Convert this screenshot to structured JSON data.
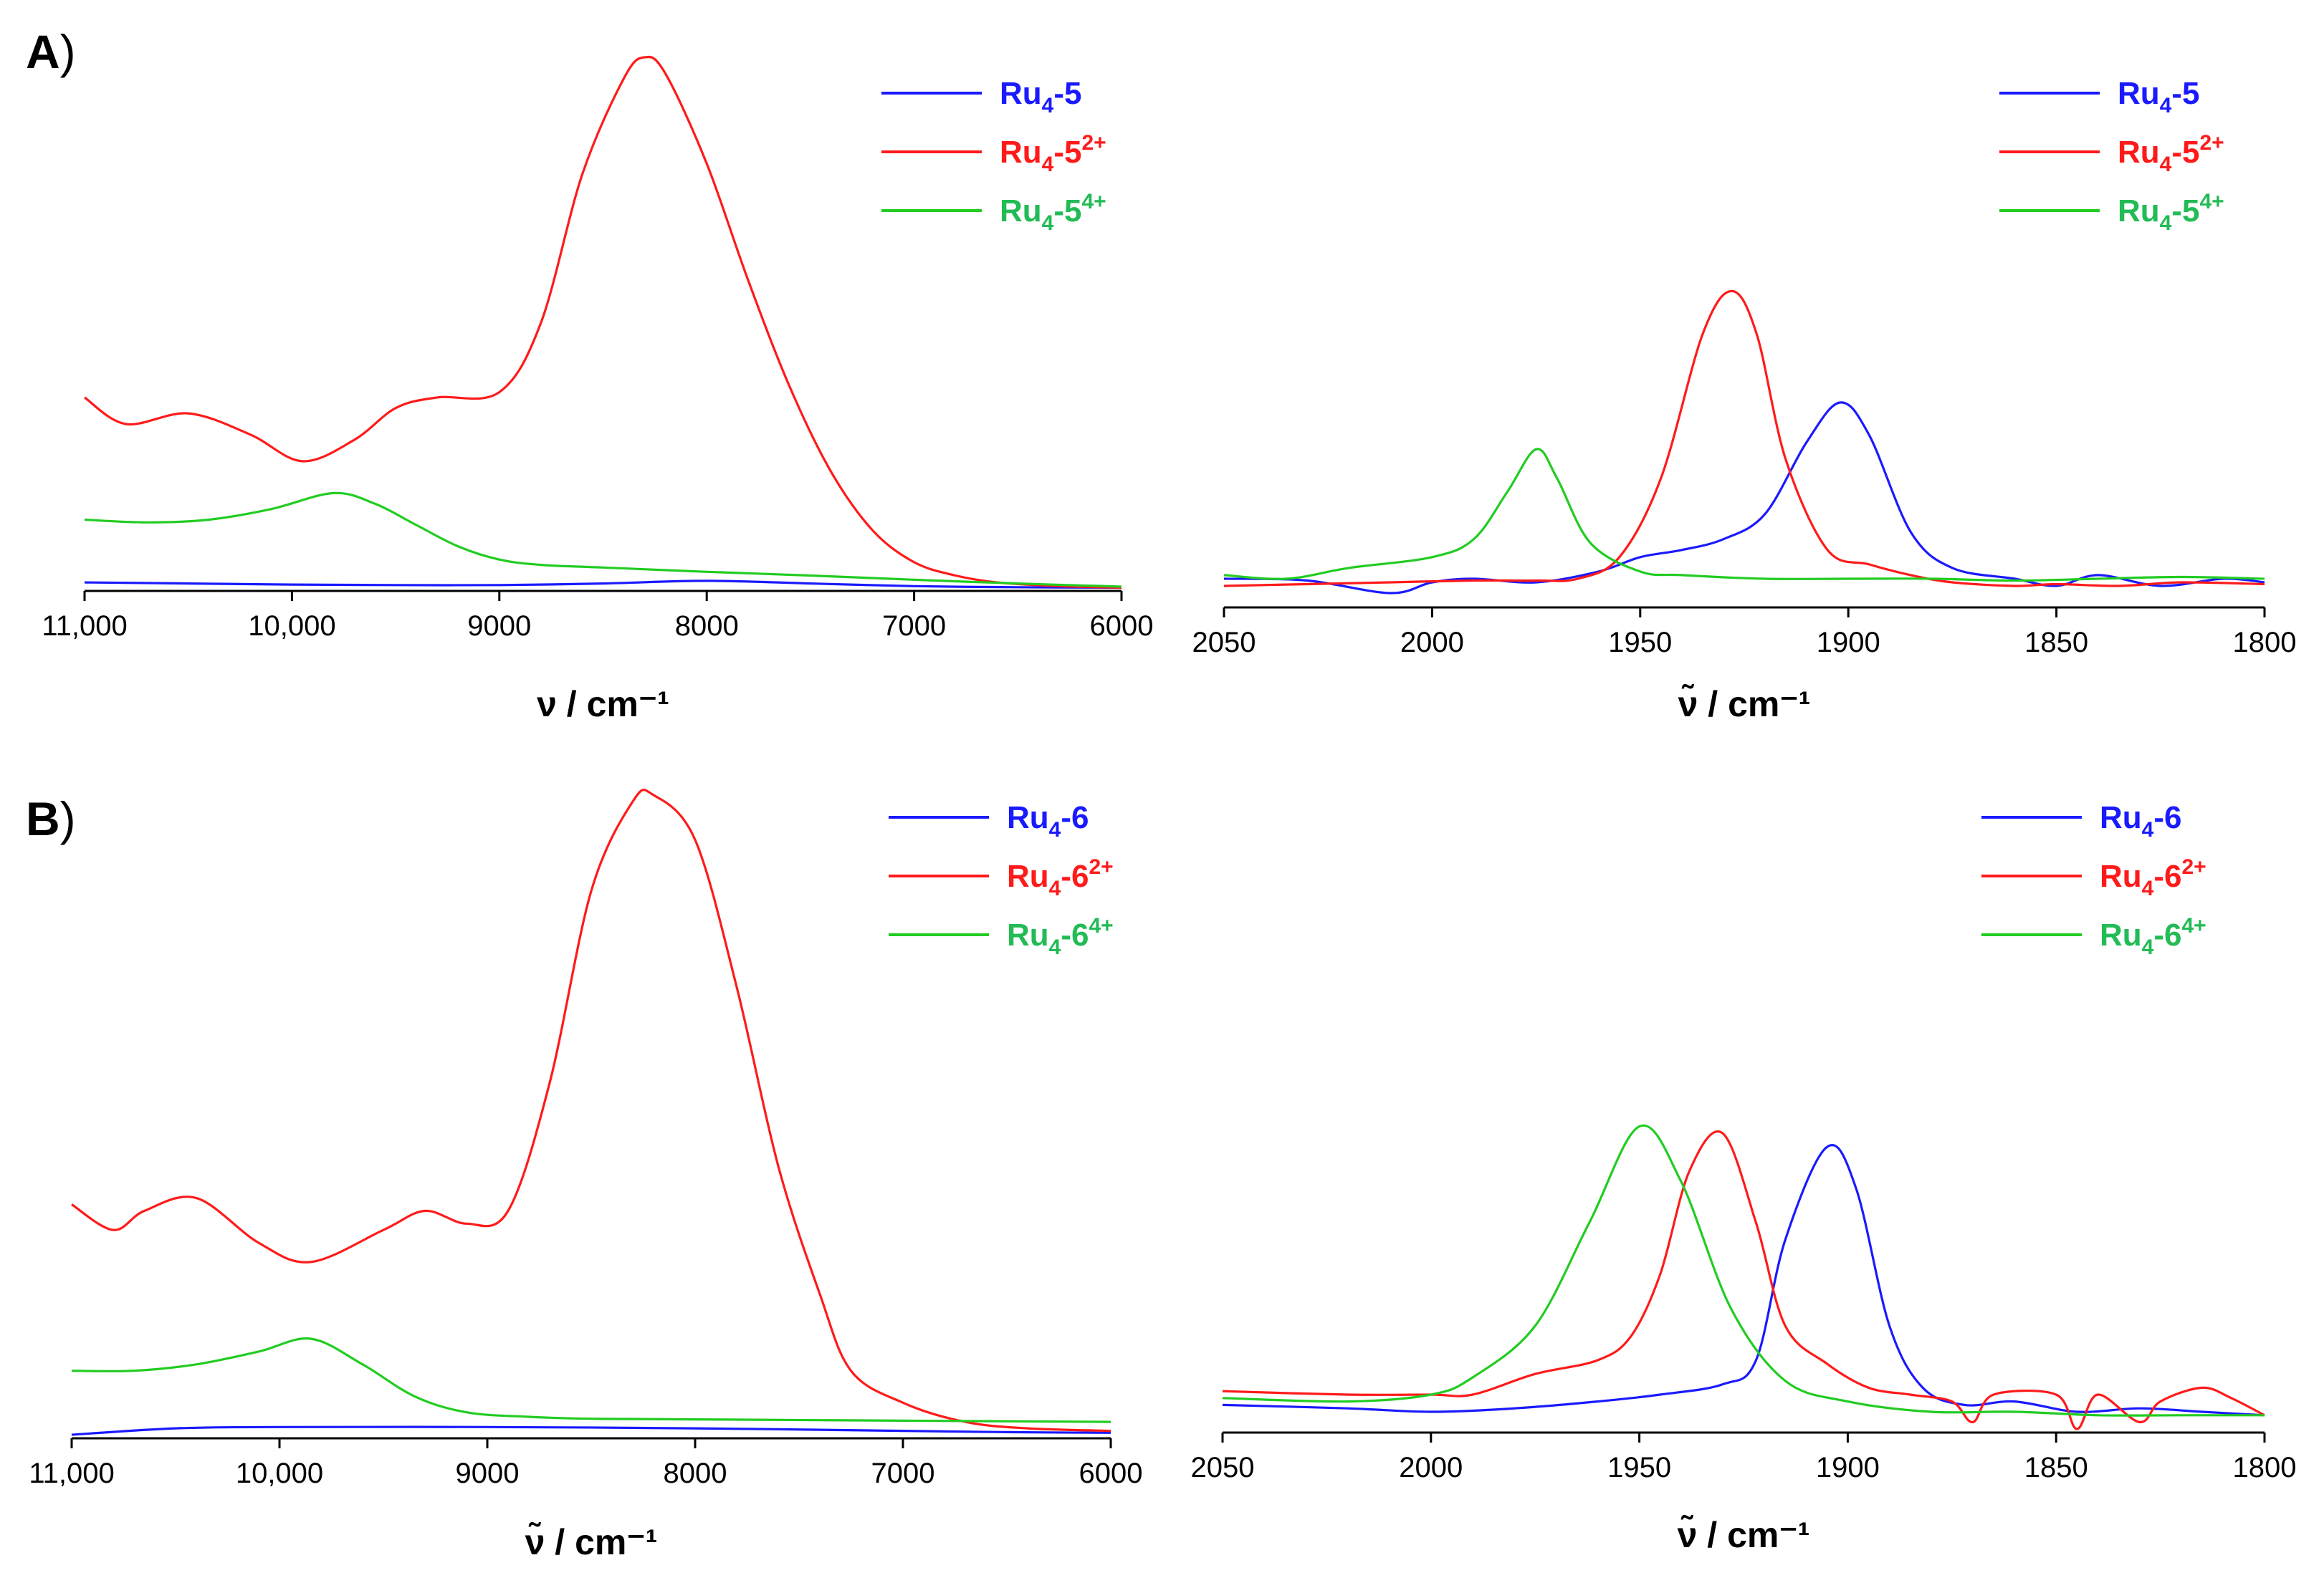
{
  "colors": {
    "blue": "#1a1aff",
    "red": "#ff1a1a",
    "green": "#22cc22",
    "green_legend": "#22bb55"
  },
  "chart_data": [
    {
      "id": "A-left",
      "panel": "A",
      "type": "line",
      "xlabel": "ν / cm⁻¹",
      "xlim": [
        11000,
        6000
      ],
      "ylim": [
        0,
        1.0
      ],
      "xticks": [
        11000,
        10000,
        9000,
        8000,
        7000,
        6000
      ],
      "xtick_labels": [
        "11,000",
        "10,000",
        "9000",
        "8000",
        "7000",
        "6000"
      ],
      "series": [
        {
          "name": "Ru4-5",
          "legend": {
            "base": "Ru",
            "sub": "4",
            "mid": "-5",
            "sup": ""
          },
          "color": "blue",
          "x": [
            11000,
            10500,
            10000,
            9500,
            9000,
            8500,
            8000,
            7500,
            7000,
            6500,
            6000
          ],
          "y": [
            0.012,
            0.01,
            0.008,
            0.007,
            0.007,
            0.01,
            0.015,
            0.01,
            0.005,
            0.003,
            0.002
          ]
        },
        {
          "name": "Ru4-5 2+",
          "legend": {
            "base": "Ru",
            "sub": "4",
            "mid": "-5",
            "sup": "2+"
          },
          "color": "red",
          "x": [
            11000,
            10800,
            10500,
            10200,
            9950,
            9700,
            9500,
            9300,
            9000,
            8800,
            8600,
            8400,
            8300,
            8200,
            8000,
            7800,
            7600,
            7400,
            7200,
            7000,
            6800,
            6600,
            6300,
            6000
          ],
          "y": [
            0.36,
            0.31,
            0.33,
            0.29,
            0.24,
            0.28,
            0.34,
            0.36,
            0.37,
            0.5,
            0.78,
            0.96,
            1.0,
            0.97,
            0.8,
            0.58,
            0.38,
            0.22,
            0.11,
            0.05,
            0.025,
            0.012,
            0.005,
            0.002
          ]
        },
        {
          "name": "Ru4-5 4+",
          "legend": {
            "base": "Ru",
            "sub": "4",
            "mid": "-5",
            "sup": "4+"
          },
          "color": "green",
          "x": [
            11000,
            10700,
            10400,
            10100,
            9800,
            9600,
            9400,
            9200,
            9000,
            8800,
            8500,
            8000,
            7500,
            7000,
            6500,
            6000
          ],
          "y": [
            0.13,
            0.125,
            0.13,
            0.15,
            0.18,
            0.16,
            0.12,
            0.08,
            0.055,
            0.045,
            0.04,
            0.032,
            0.025,
            0.017,
            0.01,
            0.004
          ]
        }
      ]
    },
    {
      "id": "A-right",
      "panel": "A",
      "type": "line",
      "xlabel": "ν̃ / cm⁻¹",
      "xlim": [
        2050,
        1800
      ],
      "ylim": [
        0,
        1.0
      ],
      "xticks": [
        2050,
        2000,
        1950,
        1900,
        1850,
        1800
      ],
      "xtick_labels": [
        "2050",
        "2000",
        "1950",
        "1900",
        "1850",
        "1800"
      ],
      "series": [
        {
          "name": "Ru4-5",
          "legend": {
            "base": "Ru",
            "sub": "4",
            "mid": "-5",
            "sup": ""
          },
          "color": "blue",
          "x": [
            2050,
            2030,
            2010,
            2000,
            1990,
            1975,
            1960,
            1950,
            1940,
            1930,
            1920,
            1910,
            1902,
            1895,
            1885,
            1875,
            1860,
            1850,
            1840,
            1825,
            1810,
            1800
          ],
          "y": [
            0.02,
            0.015,
            -0.02,
            0.01,
            0.02,
            0.01,
            0.04,
            0.08,
            0.1,
            0.13,
            0.2,
            0.4,
            0.51,
            0.42,
            0.15,
            0.05,
            0.02,
            0.0,
            0.03,
            0.0,
            0.02,
            0.01
          ]
        },
        {
          "name": "Ru4-5 2+",
          "legend": {
            "base": "Ru",
            "sub": "4",
            "mid": "-5",
            "sup": "2+"
          },
          "color": "red",
          "x": [
            2050,
            2030,
            2010,
            1990,
            1975,
            1965,
            1955,
            1945,
            1935,
            1928,
            1922,
            1915,
            1905,
            1895,
            1885,
            1875,
            1860,
            1850,
            1835,
            1820,
            1800
          ],
          "y": [
            0.0,
            0.005,
            0.01,
            0.015,
            0.015,
            0.02,
            0.08,
            0.3,
            0.7,
            0.82,
            0.7,
            0.35,
            0.1,
            0.06,
            0.03,
            0.01,
            0.0,
            0.005,
            0.0,
            0.01,
            0.005
          ]
        },
        {
          "name": "Ru4-5 4+",
          "legend": {
            "base": "Ru",
            "sub": "4",
            "mid": "-5",
            "sup": "4+"
          },
          "color": "green",
          "x": [
            2050,
            2035,
            2020,
            2000,
            1990,
            1982,
            1975,
            1970,
            1962,
            1950,
            1940,
            1920,
            1900,
            1880,
            1860,
            1840,
            1820,
            1800
          ],
          "y": [
            0.03,
            0.02,
            0.05,
            0.08,
            0.13,
            0.26,
            0.38,
            0.3,
            0.12,
            0.04,
            0.03,
            0.02,
            0.02,
            0.02,
            0.015,
            0.02,
            0.025,
            0.02
          ]
        }
      ]
    },
    {
      "id": "B-left",
      "panel": "B",
      "type": "line",
      "xlabel": "ν̃ / cm⁻¹",
      "xlim": [
        11000,
        6000
      ],
      "ylim": [
        0,
        1.0
      ],
      "xticks": [
        11000,
        10000,
        9000,
        8000,
        7000,
        6000
      ],
      "xtick_labels": [
        "11,000",
        "10,000",
        "9000",
        "8000",
        "7000",
        "6000"
      ],
      "series": [
        {
          "name": "Ru4-6",
          "legend": {
            "base": "Ru",
            "sub": "4",
            "mid": "-6",
            "sup": ""
          },
          "color": "blue",
          "x": [
            11000,
            10500,
            10000,
            9000,
            8000,
            7000,
            6500,
            6000
          ],
          "y": [
            0.0,
            0.01,
            0.012,
            0.012,
            0.01,
            0.006,
            0.004,
            0.003
          ]
        },
        {
          "name": "Ru4-6 2+",
          "legend": {
            "base": "Ru",
            "sub": "4",
            "mid": "-6",
            "sup": "2+"
          },
          "color": "red",
          "x": [
            11000,
            10800,
            10650,
            10400,
            10100,
            9850,
            9500,
            9300,
            9100,
            8900,
            8700,
            8500,
            8300,
            8200,
            8000,
            7800,
            7600,
            7400,
            7250,
            7000,
            6700,
            6400,
            6000
          ],
          "y": [
            0.36,
            0.32,
            0.35,
            0.37,
            0.3,
            0.27,
            0.32,
            0.35,
            0.33,
            0.35,
            0.55,
            0.85,
            0.99,
            1.0,
            0.93,
            0.7,
            0.42,
            0.22,
            0.1,
            0.05,
            0.02,
            0.01,
            0.006
          ]
        },
        {
          "name": "Ru4-6 4+",
          "legend": {
            "base": "Ru",
            "sub": "4",
            "mid": "-6",
            "sup": "4+"
          },
          "color": "green",
          "x": [
            11000,
            10700,
            10400,
            10100,
            9850,
            9600,
            9350,
            9100,
            8800,
            8500,
            8000,
            7000,
            6000
          ],
          "y": [
            0.1,
            0.1,
            0.11,
            0.13,
            0.15,
            0.11,
            0.06,
            0.035,
            0.028,
            0.025,
            0.024,
            0.022,
            0.02
          ]
        }
      ]
    },
    {
      "id": "B-right",
      "panel": "B",
      "type": "line",
      "xlabel": "ν̃ / cm⁻¹",
      "xlim": [
        2050,
        1800
      ],
      "ylim": [
        0,
        1.0
      ],
      "xticks": [
        2050,
        2000,
        1950,
        1900,
        1850,
        1800
      ],
      "xtick_labels": [
        "2050",
        "2000",
        "1950",
        "1900",
        "1850",
        "1800"
      ],
      "series": [
        {
          "name": "Ru4-6",
          "legend": {
            "base": "Ru",
            "sub": "4",
            "mid": "-6",
            "sup": ""
          },
          "color": "blue",
          "x": [
            2050,
            2020,
            2000,
            1980,
            1960,
            1945,
            1930,
            1922,
            1915,
            1905,
            1898,
            1890,
            1882,
            1872,
            1860,
            1845,
            1830,
            1815,
            1800
          ],
          "y": [
            0.07,
            0.06,
            0.05,
            0.06,
            0.08,
            0.1,
            0.13,
            0.2,
            0.55,
            0.82,
            0.7,
            0.3,
            0.12,
            0.07,
            0.08,
            0.05,
            0.06,
            0.05,
            0.04
          ]
        },
        {
          "name": "Ru4-6 2+",
          "legend": {
            "base": "Ru",
            "sub": "4",
            "mid": "-6",
            "sup": "2+"
          },
          "color": "red",
          "x": [
            2050,
            2020,
            2000,
            1990,
            1975,
            1960,
            1952,
            1945,
            1938,
            1930,
            1922,
            1915,
            1905,
            1895,
            1885,
            1875,
            1870,
            1865,
            1850,
            1845,
            1840,
            1830,
            1825,
            1815,
            1808,
            1800
          ],
          "y": [
            0.11,
            0.1,
            0.1,
            0.1,
            0.16,
            0.2,
            0.27,
            0.45,
            0.75,
            0.86,
            0.6,
            0.3,
            0.19,
            0.12,
            0.1,
            0.08,
            0.02,
            0.1,
            0.1,
            0.0,
            0.1,
            0.02,
            0.08,
            0.12,
            0.09,
            0.04
          ]
        },
        {
          "name": "Ru4-6 4+",
          "legend": {
            "base": "Ru",
            "sub": "4",
            "mid": "-6",
            "sup": "4+"
          },
          "color": "green",
          "x": [
            2050,
            2020,
            2000,
            1990,
            1975,
            1962,
            1950,
            1940,
            1928,
            1915,
            1900,
            1880,
            1860,
            1840,
            1820,
            1800
          ],
          "y": [
            0.09,
            0.08,
            0.1,
            0.15,
            0.3,
            0.6,
            0.88,
            0.72,
            0.35,
            0.14,
            0.08,
            0.05,
            0.05,
            0.04,
            0.04,
            0.04
          ]
        }
      ]
    }
  ],
  "panels": [
    {
      "letter": "A",
      "paren": ")"
    },
    {
      "letter": "B",
      "paren": ")"
    }
  ]
}
